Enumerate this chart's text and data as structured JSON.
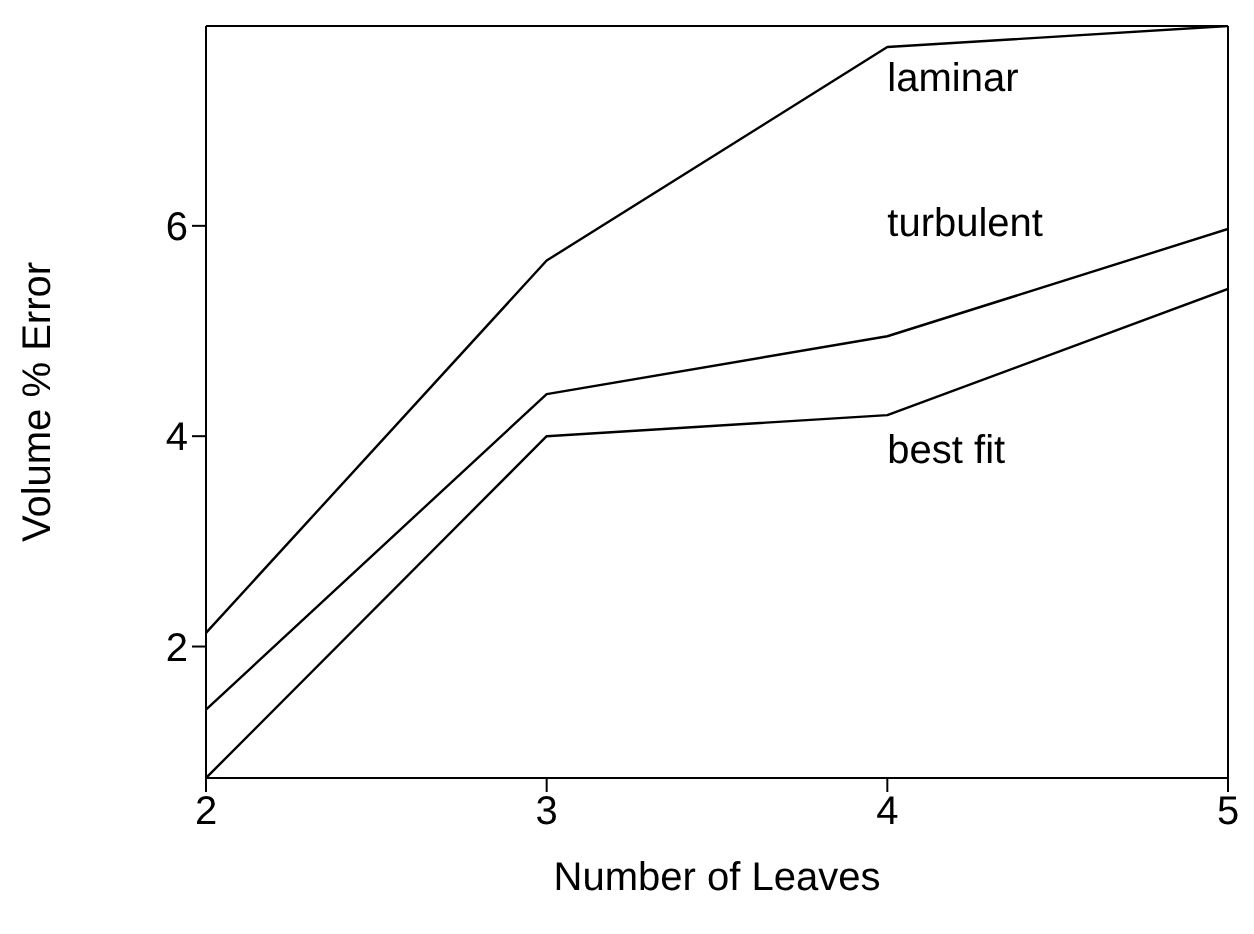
{
  "chart_data": {
    "type": "line",
    "xlabel": "Number of Leaves",
    "ylabel": "Volume % Error",
    "x": [
      2,
      3,
      4,
      5
    ],
    "series": [
      {
        "name": "laminar",
        "color": "#000000",
        "values": [
          2.13,
          5.67,
          7.7,
          7.9
        ]
      },
      {
        "name": "turbulent",
        "color": "#000000",
        "values": [
          1.4,
          4.4,
          4.95,
          5.97
        ]
      },
      {
        "name": "best fit",
        "color": "#000000",
        "values": [
          0.75,
          4.0,
          4.2,
          5.4
        ]
      }
    ],
    "xlim": [
      2,
      5
    ],
    "xticks": [
      2,
      3,
      4,
      5
    ],
    "ylim": [
      0.75,
      7.9
    ],
    "yticks": [
      2,
      4,
      6
    ],
    "grid": false,
    "legend": false,
    "marker": "none",
    "line_style": "solid"
  }
}
